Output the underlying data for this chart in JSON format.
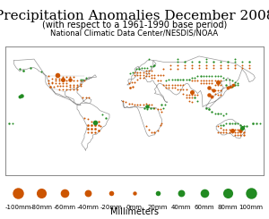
{
  "title": "Precipitation Anomalies December 2008",
  "subtitle": "(with respect to a 1961-1990 base period)",
  "source": "National Climatic Data Center/NESDIS/NOAA",
  "xlabel": "Millimeters",
  "legend_values": [
    -100,
    -80,
    -60,
    -40,
    -20,
    0,
    20,
    40,
    60,
    80,
    100
  ],
  "neg_color": "#cc5500",
  "pos_color": "#228b22",
  "background": "#ffffff",
  "map_bg": "#ffffff",
  "border_color": "#888888",
  "title_fontsize": 11,
  "subtitle_fontsize": 7,
  "source_fontsize": 6,
  "legend_fontsize": 5
}
